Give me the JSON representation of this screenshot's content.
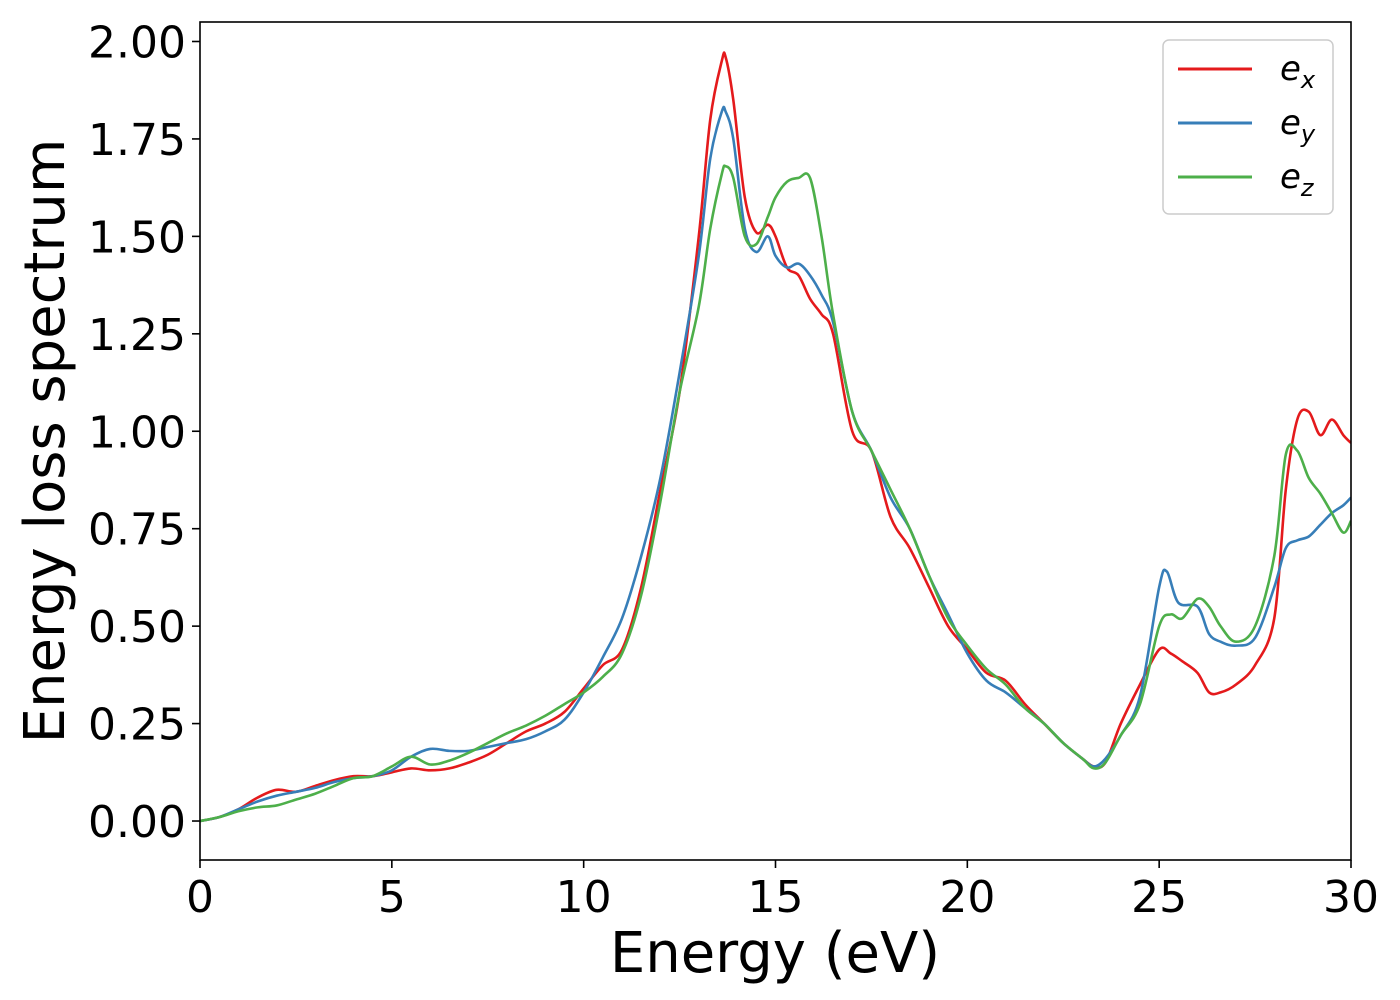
{
  "chart_data": {
    "type": "line",
    "title": "",
    "xlabel": "Energy (eV)",
    "ylabel": "Energy loss spectrum",
    "xlim": [
      0,
      30
    ],
    "ylim": [
      -0.1,
      2.05
    ],
    "xticks": [
      0,
      5,
      10,
      15,
      20,
      25,
      30
    ],
    "xtick_labels": [
      "0",
      "5",
      "10",
      "15",
      "20",
      "25",
      "30"
    ],
    "yticks": [
      0,
      0.25,
      0.5,
      0.75,
      1.0,
      1.25,
      1.5,
      1.75,
      2.0
    ],
    "ytick_labels": [
      "0.00",
      "0.25",
      "0.50",
      "0.75",
      "1.00",
      "1.25",
      "1.50",
      "1.75",
      "2.00"
    ],
    "grid": false,
    "legend_position": "top-right",
    "series": [
      {
        "name": "e_x",
        "label_base": "e",
        "label_sub": "x",
        "color": "#e41a1c",
        "x": [
          0,
          0.5,
          1,
          1.5,
          2,
          2.5,
          3,
          3.5,
          4,
          4.5,
          5,
          5.5,
          6,
          6.5,
          7,
          7.5,
          8,
          8.5,
          9,
          9.5,
          10,
          10.5,
          11,
          11.5,
          12,
          12.5,
          13,
          13.3,
          13.6,
          13.7,
          13.9,
          14.2,
          14.5,
          14.8,
          15,
          15.3,
          15.6,
          15.9,
          16.2,
          16.5,
          17,
          17.5,
          18,
          18.5,
          19,
          19.5,
          20,
          20.5,
          21,
          21.5,
          22,
          22.5,
          23,
          23.3,
          23.6,
          24,
          24.5,
          25,
          25.3,
          25.6,
          26,
          26.3,
          26.6,
          27,
          27.5,
          28,
          28.3,
          28.6,
          28.9,
          29.2,
          29.5,
          29.8,
          30
        ],
        "y": [
          0,
          0.01,
          0.03,
          0.06,
          0.08,
          0.075,
          0.09,
          0.105,
          0.115,
          0.115,
          0.125,
          0.135,
          0.13,
          0.135,
          0.15,
          0.17,
          0.2,
          0.23,
          0.25,
          0.28,
          0.34,
          0.4,
          0.44,
          0.6,
          0.85,
          1.1,
          1.5,
          1.8,
          1.95,
          1.96,
          1.85,
          1.6,
          1.51,
          1.53,
          1.5,
          1.42,
          1.4,
          1.34,
          1.3,
          1.25,
          1.0,
          0.95,
          0.78,
          0.7,
          0.6,
          0.5,
          0.44,
          0.38,
          0.36,
          0.3,
          0.25,
          0.2,
          0.16,
          0.14,
          0.15,
          0.25,
          0.35,
          0.44,
          0.43,
          0.41,
          0.38,
          0.33,
          0.33,
          0.35,
          0.4,
          0.52,
          0.85,
          1.03,
          1.05,
          0.99,
          1.03,
          0.99,
          0.97
        ]
      },
      {
        "name": "e_y",
        "label_base": "e",
        "label_sub": "y",
        "color": "#377eb8",
        "x": [
          0,
          0.5,
          1,
          1.5,
          2,
          2.5,
          3,
          3.5,
          4,
          4.5,
          5,
          5.5,
          6,
          6.5,
          7,
          7.5,
          8,
          8.5,
          9,
          9.5,
          10,
          10.5,
          11,
          11.5,
          12,
          12.5,
          13,
          13.3,
          13.6,
          13.7,
          13.9,
          14.2,
          14.5,
          14.8,
          15,
          15.3,
          15.6,
          15.9,
          16.2,
          16.5,
          17,
          17.5,
          18,
          18.5,
          19,
          19.5,
          20,
          20.5,
          21,
          21.5,
          22,
          22.5,
          23,
          23.3,
          23.6,
          24,
          24.5,
          25,
          25.2,
          25.5,
          26,
          26.3,
          26.6,
          27,
          27.5,
          28,
          28.3,
          28.6,
          28.9,
          29.2,
          29.5,
          29.8,
          30
        ],
        "y": [
          0,
          0.01,
          0.03,
          0.05,
          0.065,
          0.075,
          0.085,
          0.1,
          0.11,
          0.115,
          0.13,
          0.165,
          0.185,
          0.18,
          0.18,
          0.19,
          0.2,
          0.21,
          0.23,
          0.26,
          0.33,
          0.42,
          0.52,
          0.68,
          0.88,
          1.15,
          1.45,
          1.7,
          1.82,
          1.82,
          1.75,
          1.52,
          1.46,
          1.5,
          1.45,
          1.42,
          1.43,
          1.4,
          1.35,
          1.28,
          1.05,
          0.95,
          0.83,
          0.75,
          0.63,
          0.53,
          0.43,
          0.36,
          0.33,
          0.29,
          0.25,
          0.2,
          0.16,
          0.14,
          0.16,
          0.22,
          0.32,
          0.6,
          0.64,
          0.56,
          0.55,
          0.48,
          0.46,
          0.45,
          0.47,
          0.6,
          0.7,
          0.72,
          0.73,
          0.76,
          0.79,
          0.81,
          0.83
        ]
      },
      {
        "name": "e_z",
        "label_base": "e",
        "label_sub": "z",
        "color": "#4daf4a",
        "x": [
          0,
          0.5,
          1,
          1.5,
          2,
          2.5,
          3,
          3.5,
          4,
          4.5,
          5,
          5.5,
          6,
          6.5,
          7,
          7.5,
          8,
          8.5,
          9,
          9.5,
          10,
          10.5,
          11,
          11.5,
          12,
          12.5,
          13,
          13.3,
          13.6,
          13.7,
          13.9,
          14.2,
          14.5,
          14.8,
          15,
          15.3,
          15.6,
          15.9,
          16.2,
          16.5,
          17,
          17.5,
          18,
          18.5,
          19,
          19.5,
          20,
          20.5,
          21,
          21.5,
          22,
          22.5,
          23,
          23.3,
          23.6,
          24,
          24.5,
          25,
          25.3,
          25.6,
          26,
          26.3,
          26.6,
          27,
          27.5,
          28,
          28.3,
          28.6,
          28.9,
          29.2,
          29.5,
          29.8,
          30
        ],
        "y": [
          0,
          0.01,
          0.025,
          0.035,
          0.04,
          0.055,
          0.07,
          0.09,
          0.11,
          0.115,
          0.14,
          0.165,
          0.145,
          0.155,
          0.175,
          0.2,
          0.225,
          0.245,
          0.27,
          0.3,
          0.33,
          0.37,
          0.43,
          0.58,
          0.82,
          1.1,
          1.32,
          1.52,
          1.66,
          1.68,
          1.65,
          1.5,
          1.48,
          1.55,
          1.6,
          1.64,
          1.65,
          1.65,
          1.5,
          1.3,
          1.05,
          0.95,
          0.85,
          0.75,
          0.63,
          0.52,
          0.45,
          0.39,
          0.35,
          0.29,
          0.25,
          0.2,
          0.16,
          0.135,
          0.15,
          0.22,
          0.3,
          0.5,
          0.53,
          0.52,
          0.57,
          0.55,
          0.5,
          0.46,
          0.5,
          0.68,
          0.94,
          0.95,
          0.88,
          0.84,
          0.79,
          0.74,
          0.77
        ]
      }
    ]
  }
}
